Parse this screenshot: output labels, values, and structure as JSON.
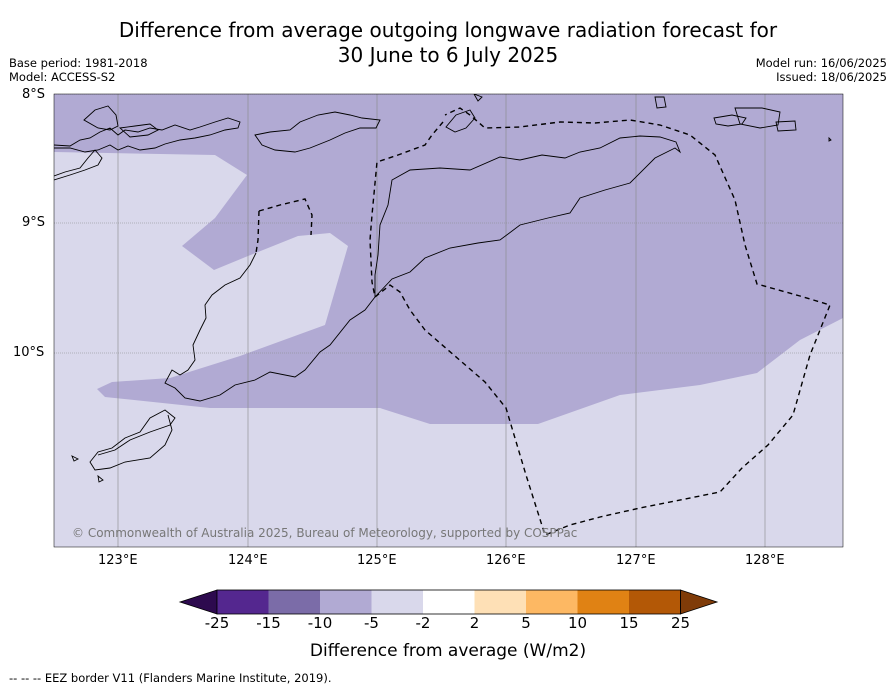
{
  "title_line1": "Difference from average outgoing longwave radiation forecast for",
  "title_line2": "30 June to 6 July 2025",
  "base_period": "Base period: 1981-2018",
  "model": "Model: ACCESS-S2",
  "model_run": "Model run: 16/06/2025",
  "issued": "Issued: 18/06/2025",
  "lat_labels": [
    "8°S",
    "9°S",
    "10°S"
  ],
  "lon_labels": [
    "123°E",
    "124°E",
    "125°E",
    "126°E",
    "127°E",
    "128°E"
  ],
  "copyright": "© Commonwealth of Australia 2025, Bureau of Meteorology, supported by COSPPac",
  "colorbar": {
    "ticks": [
      "-25",
      "-15",
      "-10",
      "-5",
      "-2",
      "2",
      "5",
      "10",
      "15",
      "25"
    ],
    "colors": [
      "#2d0a4e",
      "#54278f",
      "#7b6ca8",
      "#b1aad3",
      "#d9d8eb",
      "#ffffff",
      "#fee0b6",
      "#fdb863",
      "#e08214",
      "#b35806",
      "#7f3b08"
    ],
    "label": "Difference from average (W/m2)"
  },
  "map": {
    "lon_range": [
      122.5,
      128.6
    ],
    "lat_range": [
      -11.5,
      -8.0
    ],
    "fill_colors": {
      "light": "#d9d8eb",
      "medium": "#b1aad3"
    }
  },
  "footnote": "-- -- -- EEZ border V11 (Flanders Marine Institute, 2019)."
}
